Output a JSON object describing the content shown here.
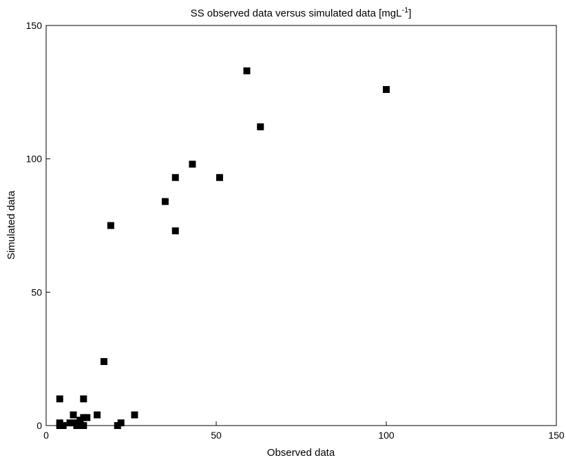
{
  "chart_data": {
    "type": "scatter",
    "title": "SS observed data versus simulated data [mgL",
    "title_superscript": "-1",
    "title_suffix": "]",
    "xlabel": "Observed data",
    "ylabel": "Simulated data",
    "xlim": [
      0,
      150
    ],
    "ylim": [
      0,
      150
    ],
    "xticks": [
      0,
      50,
      100,
      150
    ],
    "yticks": [
      0,
      50,
      100,
      150
    ],
    "grid": false,
    "marker": "square",
    "marker_color": "#000000",
    "series": [
      {
        "x": [
          4,
          4,
          4,
          5,
          7,
          8,
          9,
          9,
          10,
          10,
          11,
          11,
          11,
          12,
          15,
          17,
          19,
          21,
          22,
          26,
          35,
          38,
          38,
          43,
          51,
          59,
          63,
          100
        ],
        "y": [
          10,
          1,
          0,
          0,
          1,
          4,
          0,
          1,
          2,
          1,
          10,
          3,
          0,
          3,
          4,
          24,
          75,
          0,
          1,
          4,
          84,
          93,
          73,
          98,
          93,
          133,
          112,
          126
        ]
      }
    ]
  }
}
